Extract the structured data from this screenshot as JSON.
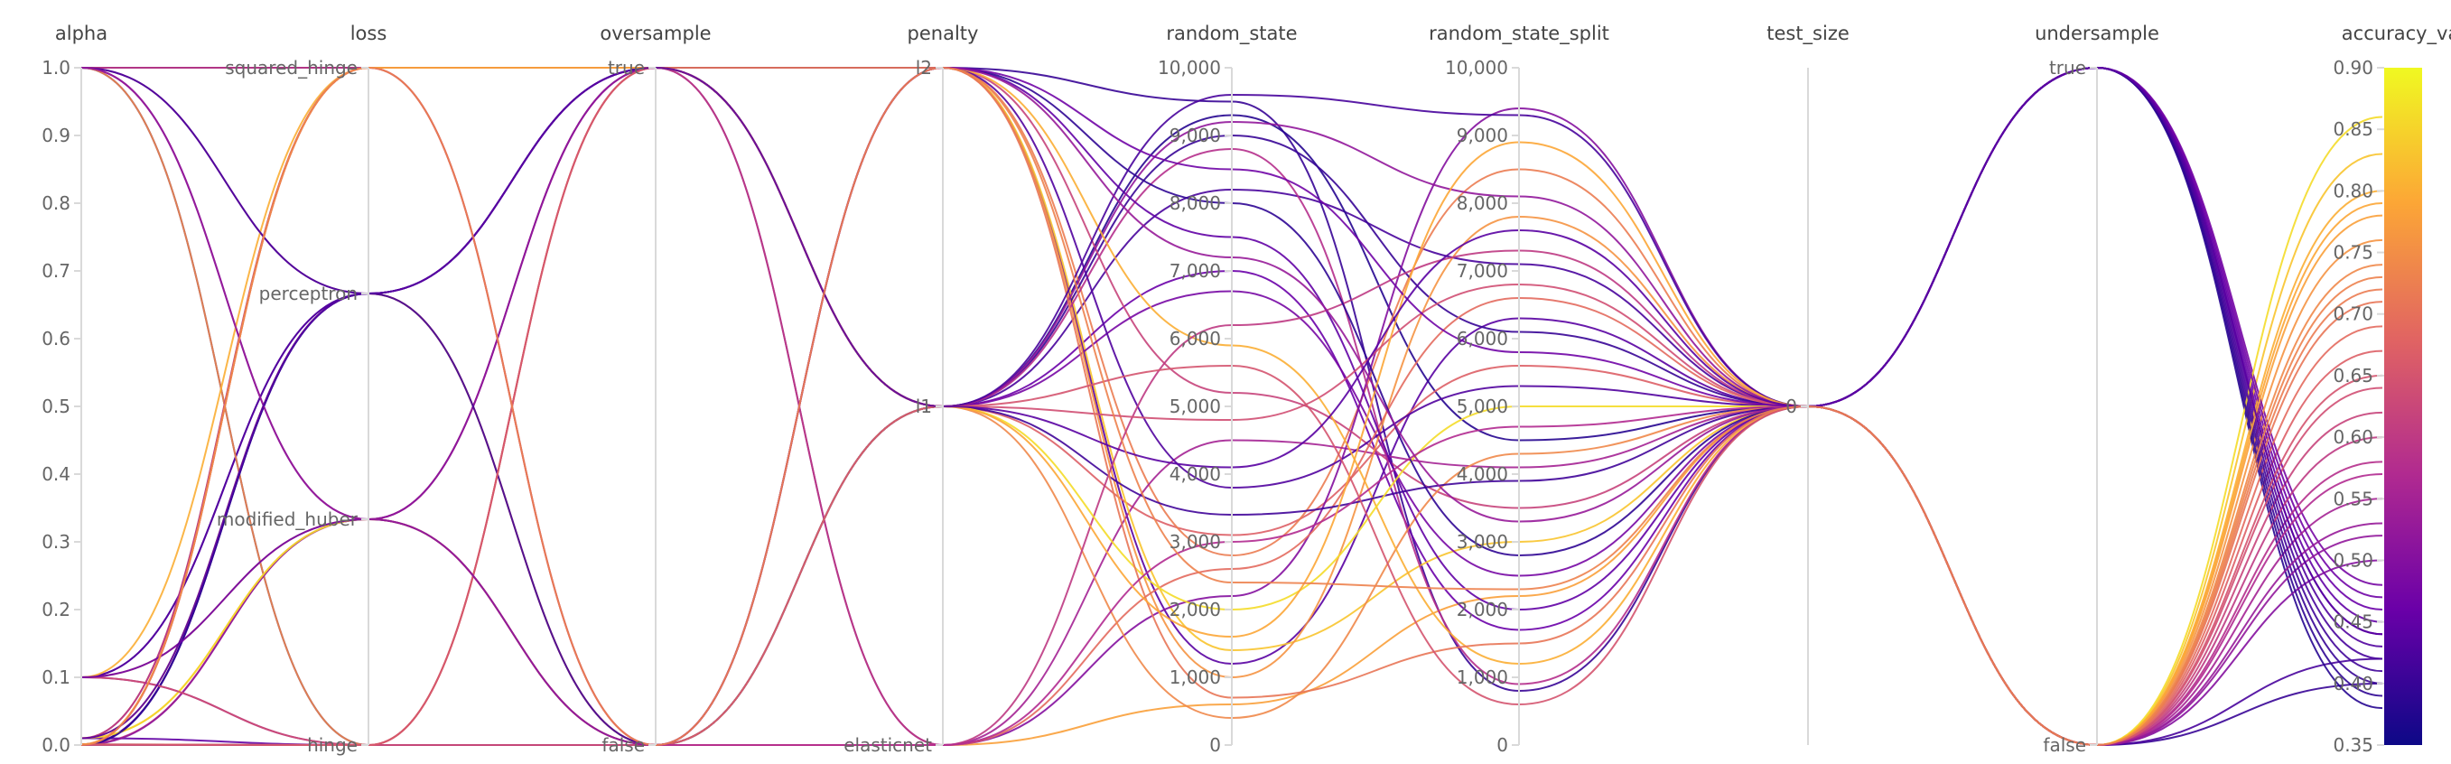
{
  "chart_data": {
    "type": "parallel_coordinates",
    "axes": [
      {
        "name": "alpha",
        "kind": "linear",
        "domain": [
          0,
          1.0
        ],
        "ticks": [
          "1.0",
          "0.9",
          "0.8",
          "0.7",
          "0.6",
          "0.5",
          "0.4",
          "0.3",
          "0.2",
          "0.1",
          "0.0"
        ]
      },
      {
        "name": "loss",
        "kind": "categorical",
        "categories": [
          "squared_hinge",
          "perceptron",
          "modified_huber",
          "hinge"
        ]
      },
      {
        "name": "oversample",
        "kind": "categorical",
        "categories": [
          "true",
          "false"
        ]
      },
      {
        "name": "penalty",
        "kind": "categorical",
        "categories": [
          "l2",
          "l1",
          "elasticnet"
        ]
      },
      {
        "name": "random_state",
        "kind": "linear",
        "domain": [
          0,
          10000
        ],
        "ticks": [
          "10,000",
          "9,000",
          "8,000",
          "7,000",
          "6,000",
          "5,000",
          "4,000",
          "3,000",
          "2,000",
          "1,000",
          "0"
        ]
      },
      {
        "name": "random_state_split",
        "kind": "linear",
        "domain": [
          0,
          10000
        ],
        "ticks": [
          "10,000",
          "9,000",
          "8,000",
          "7,000",
          "6,000",
          "5,000",
          "4,000",
          "3,000",
          "2,000",
          "1,000",
          "0"
        ]
      },
      {
        "name": "test_size",
        "kind": "categorical",
        "categories": [
          "0"
        ]
      },
      {
        "name": "undersample",
        "kind": "categorical",
        "categories": [
          "true",
          "false"
        ]
      },
      {
        "name": "accuracy_val",
        "kind": "linear",
        "domain": [
          0.35,
          0.9
        ],
        "ticks": [
          "0.90",
          "0.85",
          "0.80",
          "0.75",
          "0.70",
          "0.65",
          "0.60",
          "0.55",
          "0.50",
          "0.45",
          "0.40",
          "0.35"
        ]
      }
    ],
    "colorscale": {
      "metric": "accuracy_val",
      "min": 0.35,
      "max": 0.9,
      "colors": [
        "#0d0887",
        "#6a00a8",
        "#b12a90",
        "#e16462",
        "#fca636",
        "#f0f921"
      ]
    },
    "runs": [
      [
        1.0,
        "squared_hinge",
        "true",
        "l2",
        9500,
        800,
        "0",
        "false",
        0.4
      ],
      [
        0.001,
        "hinge",
        "false",
        "l1",
        8200,
        7100,
        "0",
        "false",
        0.42
      ],
      [
        0.1,
        "perceptron",
        "true",
        "l2",
        1200,
        6300,
        "0",
        "true",
        0.44
      ],
      [
        0.01,
        "modified_huber",
        "false",
        "elasticnet",
        600,
        2200,
        "0",
        "false",
        0.78
      ],
      [
        1.0,
        "hinge",
        "false",
        "l1",
        9300,
        4500,
        "0",
        "true",
        0.38
      ],
      [
        0.0001,
        "squared_hinge",
        "true",
        "l1",
        3100,
        5600,
        "0",
        "false",
        0.67
      ],
      [
        0.1,
        "modified_huber",
        "true",
        "l2",
        2800,
        8500,
        "0",
        "false",
        0.72
      ],
      [
        0.001,
        "perceptron",
        "true",
        "l1",
        7000,
        1700,
        "0",
        "true",
        0.46
      ],
      [
        1.0,
        "perceptron",
        "false",
        "elasticnet",
        4500,
        4100,
        "0",
        "false",
        0.55
      ],
      [
        0.01,
        "squared_hinge",
        "true",
        "l2",
        1400,
        3000,
        "0",
        "false",
        0.83
      ],
      [
        0.0001,
        "hinge",
        "false",
        "l1",
        9000,
        6100,
        "0",
        "true",
        0.4
      ],
      [
        0.1,
        "hinge",
        "true",
        "elasticnet",
        2200,
        9400,
        "0",
        "false",
        0.5
      ],
      [
        0.001,
        "modified_huber",
        "false",
        "l2",
        5200,
        3500,
        "0",
        "false",
        0.62
      ],
      [
        1.0,
        "modified_huber",
        "true",
        "l1",
        6700,
        2500,
        "0",
        "true",
        0.48
      ],
      [
        0.01,
        "perceptron",
        "false",
        "l2",
        1000,
        7800,
        "0",
        "false",
        0.76
      ],
      [
        0.0001,
        "squared_hinge",
        "true",
        "l1",
        8800,
        900,
        "0",
        "false",
        0.58
      ],
      [
        0.1,
        "perceptron",
        "true",
        "l2",
        3800,
        5300,
        "0",
        "true",
        0.43
      ],
      [
        0.001,
        "squared_hinge",
        "false",
        "elasticnet",
        2600,
        6600,
        "0",
        "false",
        0.69
      ],
      [
        1.0,
        "hinge",
        "true",
        "l1",
        400,
        4300,
        "0",
        "false",
        0.74
      ],
      [
        0.01,
        "hinge",
        "false",
        "l2",
        7500,
        2000,
        "0",
        "true",
        0.45
      ],
      [
        0.0001,
        "modified_huber",
        "true",
        "l1",
        9200,
        8100,
        "0",
        "false",
        0.52
      ],
      [
        0.1,
        "squared_hinge",
        "true",
        "l2",
        5900,
        1200,
        "0",
        "false",
        0.8
      ],
      [
        0.001,
        "perceptron",
        "false",
        "l1",
        3400,
        3900,
        "0",
        "true",
        0.41
      ],
      [
        1.0,
        "squared_hinge",
        "true",
        "elasticnet",
        6200,
        7300,
        "0",
        "false",
        0.6
      ],
      [
        0.01,
        "modified_huber",
        "false",
        "l1",
        2000,
        5000,
        "0",
        "false",
        0.86
      ],
      [
        0.0001,
        "perceptron",
        "true",
        "l2",
        8000,
        2800,
        "0",
        "true",
        0.39
      ],
      [
        0.1,
        "hinge",
        "false",
        "l1",
        4800,
        6800,
        "0",
        "false",
        0.64
      ],
      [
        0.001,
        "hinge",
        "true",
        "l2",
        700,
        1500,
        "0",
        "false",
        0.71
      ],
      [
        1.0,
        "perceptron",
        "true",
        "l1",
        9600,
        9300,
        "0",
        "true",
        0.42
      ],
      [
        0.01,
        "squared_hinge",
        "false",
        "elasticnet",
        3000,
        4700,
        "0",
        "false",
        0.57
      ],
      [
        0.0001,
        "hinge",
        "true",
        "l1",
        5600,
        600,
        "0",
        "false",
        0.65
      ],
      [
        0.1,
        "modified_huber",
        "false",
        "l2",
        8500,
        5800,
        "0",
        "true",
        0.47
      ],
      [
        0.001,
        "squared_hinge",
        "true",
        "l1",
        1600,
        8900,
        "0",
        "false",
        0.79
      ],
      [
        1.0,
        "modified_huber",
        "false",
        "l2",
        7200,
        3300,
        "0",
        "false",
        0.53
      ],
      [
        0.01,
        "perceptron",
        "true",
        "l1",
        4100,
        7600,
        "0",
        "true",
        0.44
      ],
      [
        0.0001,
        "squared_hinge",
        "false",
        "l2",
        2400,
        2300,
        "0",
        "false",
        0.73
      ]
    ]
  }
}
